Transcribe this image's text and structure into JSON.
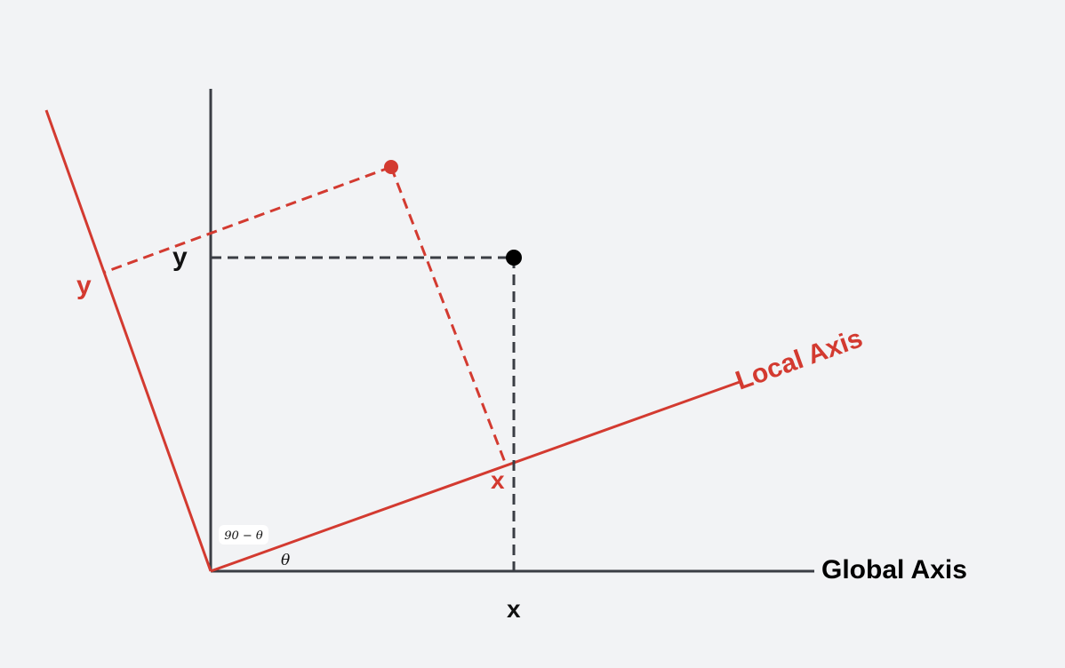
{
  "diagram": {
    "global_axis_label": "Global Axis",
    "local_axis_label": "Local Axis",
    "global_x_label": "x",
    "global_y_label": "y",
    "local_x_label": "x",
    "local_y_label": "y",
    "angle_theta_label": "θ",
    "angle_complement_label": "90 − θ"
  },
  "colors": {
    "global": "#3a3d44",
    "local": "#d33a30",
    "point_global": "#000000",
    "point_local": "#d33a30",
    "background": "#f2f3f5"
  }
}
